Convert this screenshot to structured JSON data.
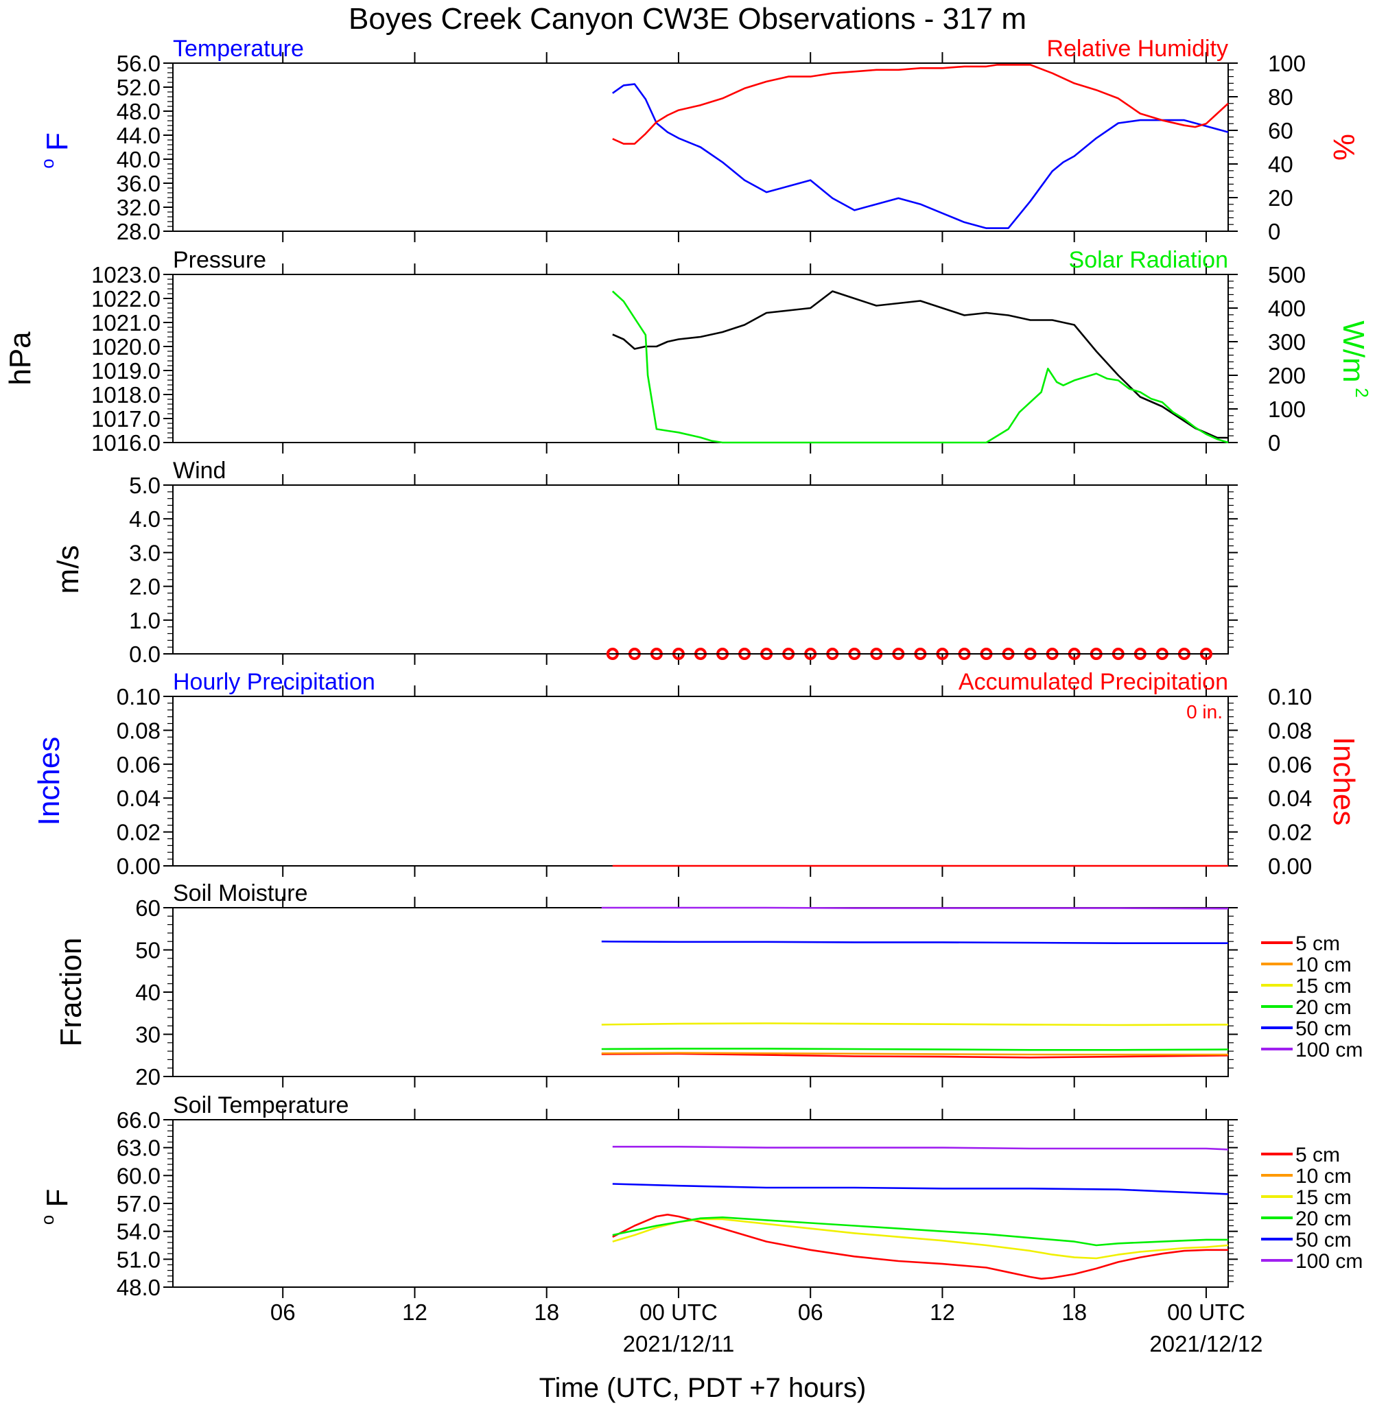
{
  "title": "Boyes Creek Canyon CW3E Observations - 317 m",
  "xlabel": "Time (UTC, PDT +7 hours)",
  "x_ticks": [
    {
      "hour": 6,
      "label": "06",
      "date": ""
    },
    {
      "hour": 12,
      "label": "12",
      "date": ""
    },
    {
      "hour": 18,
      "label": "18",
      "date": ""
    },
    {
      "hour": 24,
      "label": "00 UTC",
      "date": "2021/12/11"
    },
    {
      "hour": 30,
      "label": "06",
      "date": ""
    },
    {
      "hour": 36,
      "label": "12",
      "date": ""
    },
    {
      "hour": 42,
      "label": "18",
      "date": ""
    },
    {
      "hour": 48,
      "label": "00 UTC",
      "date": "2021/12/12"
    }
  ],
  "colors": {
    "red": "#ff0000",
    "blue": "#0000ff",
    "green": "#00ee00",
    "black": "#000000",
    "orange": "#ff9900",
    "yellow": "#f0f000",
    "purple": "#a020f0"
  },
  "legend": {
    "labels": [
      "5 cm",
      "10 cm",
      "15 cm",
      "20 cm",
      "50 cm",
      "100 cm"
    ],
    "colors": [
      "#ff0000",
      "#ff9900",
      "#f0f000",
      "#00ee00",
      "#0000ff",
      "#a020f0"
    ]
  },
  "chart_data": [
    {
      "type": "line",
      "id": "temp_rh",
      "title_left": "Temperature",
      "title_right": "Relative Humidity",
      "ylabel_left": "oF",
      "ylabel_right": "%",
      "ylim_left": [
        28,
        56
      ],
      "ylim_right": [
        0,
        100
      ],
      "xlim": [
        1,
        49
      ],
      "yticks_left": [
        "56.0",
        "52.0",
        "48.0",
        "44.0",
        "40.0",
        "36.0",
        "32.0",
        "28.0"
      ],
      "yticks_right": [
        "100",
        "80",
        "60",
        "40",
        "20",
        "0"
      ],
      "series": [
        {
          "name": "Temperature",
          "axis": "left",
          "color": "#0000ff",
          "x": [
            21,
            21.5,
            22,
            22.5,
            23,
            23.5,
            24,
            25,
            26,
            27,
            28,
            29,
            30,
            31,
            32,
            33,
            34,
            35,
            36,
            37,
            38,
            39,
            40,
            41,
            41.5,
            42,
            43,
            44,
            45,
            46,
            47,
            48,
            49
          ],
          "y": [
            51,
            52.3,
            52.5,
            50,
            46,
            44.5,
            43.5,
            42,
            39.5,
            36.5,
            34.5,
            35.5,
            36.5,
            33.5,
            31.5,
            32.5,
            33.5,
            32.5,
            31,
            29.5,
            28.5,
            28.5,
            33,
            38,
            39.5,
            40.5,
            43.5,
            46,
            46.5,
            46.5,
            46.5,
            45.5,
            44.5
          ]
        },
        {
          "name": "Relative Humidity",
          "axis": "right",
          "color": "#ff0000",
          "x": [
            21,
            21.5,
            22,
            22.5,
            23,
            23.5,
            24,
            25,
            26,
            27,
            28,
            29,
            30,
            31,
            32,
            33,
            34,
            35,
            36,
            37,
            38,
            38.5,
            39,
            40,
            41,
            42,
            43,
            44,
            45,
            46,
            47,
            47.5,
            48,
            48.5,
            49
          ],
          "y": [
            55,
            52,
            52,
            58,
            65,
            69,
            72,
            75,
            79,
            85,
            89,
            92,
            92,
            94,
            95,
            96,
            96,
            97,
            97,
            98,
            98,
            99,
            99,
            99,
            94,
            88,
            84,
            79,
            70,
            66,
            63,
            62,
            64,
            70,
            76
          ]
        }
      ]
    },
    {
      "type": "line",
      "id": "pressure_solar",
      "title_left": "Pressure",
      "title_right": "Solar Radiation",
      "ylabel_left": "hPa",
      "ylabel_right": "W/m2",
      "ylim_left": [
        1016,
        1023
      ],
      "ylim_right": [
        0,
        500
      ],
      "xlim": [
        1,
        49
      ],
      "yticks_left": [
        "1023.0",
        "1022.0",
        "1021.0",
        "1020.0",
        "1019.0",
        "1018.0",
        "1017.0",
        "1016.0"
      ],
      "yticks_right": [
        "500",
        "400",
        "300",
        "200",
        "100",
        "0"
      ],
      "series": [
        {
          "name": "Pressure",
          "axis": "left",
          "color": "#000000",
          "x": [
            21,
            21.5,
            22,
            22.5,
            23,
            23.5,
            24,
            25,
            26,
            27,
            28,
            29,
            30,
            31,
            32,
            33,
            34,
            35,
            36,
            37,
            38,
            39,
            40,
            41,
            42,
            43,
            44,
            45,
            46,
            47,
            47.5,
            48,
            48.5,
            49
          ],
          "y": [
            1020.5,
            1020.3,
            1019.9,
            1020.0,
            1020.0,
            1020.2,
            1020.3,
            1020.4,
            1020.6,
            1020.9,
            1021.4,
            1021.5,
            1021.6,
            1022.3,
            1022.0,
            1021.7,
            1021.8,
            1021.9,
            1021.6,
            1021.3,
            1021.4,
            1021.3,
            1021.1,
            1021.1,
            1020.9,
            1019.8,
            1018.8,
            1017.9,
            1017.5,
            1016.9,
            1016.6,
            1016.4,
            1016.2,
            1016.2
          ]
        },
        {
          "name": "Solar Radiation",
          "axis": "right",
          "color": "#00ee00",
          "x": [
            21,
            21.5,
            22,
            22.5,
            22.6,
            23,
            23.5,
            24,
            25,
            25.5,
            26,
            38,
            39,
            39.5,
            40,
            40.5,
            40.8,
            41,
            41.2,
            41.5,
            42,
            42.5,
            43,
            43.5,
            44,
            44.5,
            45,
            45.5,
            46,
            46.5,
            47,
            47.5,
            48,
            48.5,
            49
          ],
          "y": [
            450,
            420,
            370,
            320,
            200,
            40,
            35,
            30,
            15,
            5,
            0,
            0,
            40,
            90,
            120,
            150,
            220,
            200,
            180,
            170,
            185,
            195,
            205,
            190,
            185,
            160,
            150,
            130,
            120,
            90,
            70,
            45,
            25,
            10,
            0
          ]
        }
      ]
    },
    {
      "type": "scatter",
      "id": "wind",
      "title_left": "Wind",
      "ylabel_left": "m/s",
      "ylim_left": [
        0,
        5
      ],
      "xlim": [
        1,
        49
      ],
      "yticks_left": [
        "5.0",
        "4.0",
        "3.0",
        "2.0",
        "1.0",
        "0.0"
      ],
      "marker_x": [
        21,
        22,
        23,
        24,
        25,
        26,
        27,
        28,
        29,
        30,
        31,
        32,
        33,
        34,
        35,
        36,
        37,
        38,
        39,
        40,
        41,
        42,
        43,
        44,
        45,
        46,
        47,
        48
      ],
      "marker_y": [
        0,
        0,
        0,
        0,
        0,
        0,
        0,
        0,
        0,
        0,
        0,
        0,
        0,
        0,
        0,
        0,
        0,
        0,
        0,
        0,
        0,
        0,
        0,
        0,
        0,
        0,
        0,
        0
      ]
    },
    {
      "type": "line",
      "id": "precip",
      "title_left": "Hourly Precipitation",
      "title_right": "Accumulated Precipitation",
      "annotation": "0 in.",
      "ylabel_left": "Inches",
      "ylabel_right": "Inches",
      "ylim_left": [
        0,
        0.1
      ],
      "ylim_right": [
        0,
        0.1
      ],
      "xlim": [
        1,
        49
      ],
      "yticks_left": [
        "0.10",
        "0.08",
        "0.06",
        "0.04",
        "0.02",
        "0.00"
      ],
      "yticks_right": [
        "0.10",
        "0.08",
        "0.06",
        "0.04",
        "0.02",
        "0.00"
      ],
      "series": [
        {
          "name": "Accumulated Precipitation",
          "axis": "right",
          "color": "#ff0000",
          "x": [
            21,
            49
          ],
          "y": [
            0,
            0
          ]
        }
      ]
    },
    {
      "type": "line",
      "id": "soil_moisture",
      "title_left": "Soil Moisture",
      "ylabel_left": "Fraction",
      "ylim_left": [
        20,
        60
      ],
      "xlim": [
        1,
        49
      ],
      "yticks_left": [
        "60",
        "50",
        "40",
        "30",
        "20"
      ],
      "series": [
        {
          "name": "5 cm",
          "color": "#ff0000",
          "x": [
            20.5,
            24,
            28,
            32,
            36,
            40,
            44,
            49
          ],
          "y": [
            25.3,
            25.4,
            25.1,
            24.8,
            24.7,
            24.5,
            24.7,
            25.0
          ]
        },
        {
          "name": "10 cm",
          "color": "#ff9900",
          "x": [
            20.5,
            24,
            28,
            32,
            36,
            40,
            44,
            49
          ],
          "y": [
            25.5,
            25.6,
            25.5,
            25.4,
            25.3,
            25.2,
            25.2,
            25.2
          ]
        },
        {
          "name": "15 cm",
          "color": "#f0f000",
          "x": [
            20.5,
            24,
            28,
            32,
            36,
            40,
            44,
            49
          ],
          "y": [
            32.3,
            32.5,
            32.6,
            32.5,
            32.4,
            32.3,
            32.2,
            32.3
          ]
        },
        {
          "name": "20 cm",
          "color": "#00ee00",
          "x": [
            20.5,
            24,
            28,
            32,
            36,
            40,
            44,
            49
          ],
          "y": [
            26.5,
            26.6,
            26.6,
            26.5,
            26.4,
            26.3,
            26.3,
            26.4
          ]
        },
        {
          "name": "50 cm",
          "color": "#0000ff",
          "x": [
            20.5,
            24,
            28,
            32,
            36,
            40,
            44,
            49
          ],
          "y": [
            52.0,
            51.9,
            51.9,
            51.8,
            51.8,
            51.7,
            51.6,
            51.6
          ]
        },
        {
          "name": "100 cm",
          "color": "#a020f0",
          "x": [
            20.5,
            24,
            28,
            32,
            36,
            40,
            44,
            49
          ],
          "y": [
            60.0,
            60.0,
            60.0,
            59.9,
            59.9,
            59.9,
            59.9,
            59.8
          ]
        }
      ]
    },
    {
      "type": "line",
      "id": "soil_temp",
      "title_left": "Soil Temperature",
      "ylabel_left": "oF",
      "ylim_left": [
        48,
        66
      ],
      "xlim": [
        1,
        49
      ],
      "yticks_left": [
        "66.0",
        "63.0",
        "60.0",
        "57.0",
        "54.0",
        "51.0",
        "48.0"
      ],
      "series": [
        {
          "name": "5 cm",
          "color": "#ff0000",
          "x": [
            21,
            22,
            23,
            23.5,
            24,
            25,
            26,
            27,
            28,
            30,
            32,
            34,
            36,
            38,
            39,
            40,
            40.5,
            41,
            42,
            43,
            44,
            45,
            46,
            47,
            48,
            49
          ],
          "y": [
            53.4,
            54.6,
            55.6,
            55.8,
            55.6,
            55.0,
            54.3,
            53.6,
            52.9,
            52.0,
            51.3,
            50.8,
            50.5,
            50.1,
            49.6,
            49.1,
            48.9,
            49.0,
            49.4,
            50.0,
            50.7,
            51.2,
            51.6,
            51.9,
            52.0,
            52.0
          ]
        },
        {
          "name": "15 cm",
          "color": "#f0f000",
          "x": [
            21,
            22,
            23,
            24,
            25,
            26,
            28,
            30,
            32,
            34,
            36,
            38,
            40,
            41,
            42,
            43,
            44,
            45,
            46,
            47,
            48,
            49
          ],
          "y": [
            52.9,
            53.6,
            54.4,
            55.0,
            55.3,
            55.3,
            54.8,
            54.3,
            53.8,
            53.4,
            53.0,
            52.5,
            51.9,
            51.5,
            51.2,
            51.1,
            51.5,
            51.8,
            52.0,
            52.2,
            52.3,
            52.5
          ]
        },
        {
          "name": "20 cm",
          "color": "#00ee00",
          "x": [
            21,
            22,
            23,
            24,
            25,
            26,
            28,
            30,
            32,
            34,
            36,
            38,
            40,
            42,
            43,
            44,
            45,
            46,
            47,
            48,
            49
          ],
          "y": [
            53.6,
            54.1,
            54.6,
            55.0,
            55.4,
            55.5,
            55.2,
            54.9,
            54.6,
            54.3,
            54.0,
            53.7,
            53.3,
            52.9,
            52.5,
            52.7,
            52.8,
            52.9,
            53.0,
            53.1,
            53.1
          ]
        },
        {
          "name": "50 cm",
          "color": "#0000ff",
          "x": [
            21,
            24,
            28,
            32,
            36,
            40,
            44,
            46,
            48,
            49
          ],
          "y": [
            59.1,
            58.9,
            58.7,
            58.7,
            58.6,
            58.6,
            58.5,
            58.3,
            58.1,
            58.0
          ]
        },
        {
          "name": "100 cm",
          "color": "#a020f0",
          "x": [
            21,
            24,
            28,
            32,
            36,
            40,
            44,
            48,
            49
          ],
          "y": [
            63.1,
            63.1,
            63.0,
            63.0,
            63.0,
            62.9,
            62.9,
            62.9,
            62.8
          ]
        }
      ]
    }
  ]
}
